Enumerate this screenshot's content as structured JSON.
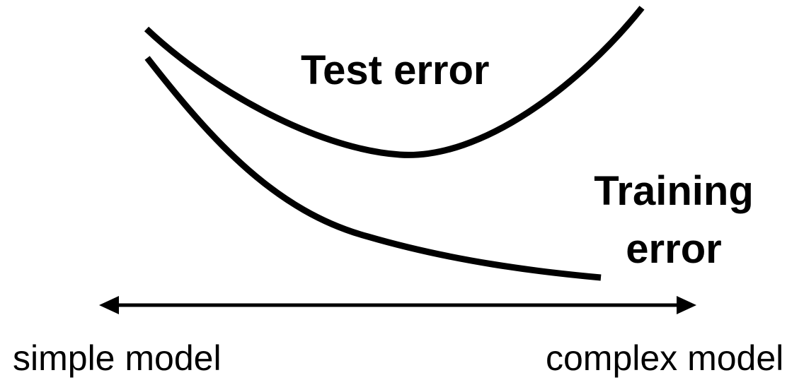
{
  "colors": {
    "ink": "#000000",
    "background": "#ffffff"
  },
  "diagram": {
    "test_error_label": "Test error",
    "training_error_label_line1": "Training",
    "training_error_label_line2": "error",
    "axis_left_label": "simple model",
    "axis_right_label": "complex model"
  }
}
